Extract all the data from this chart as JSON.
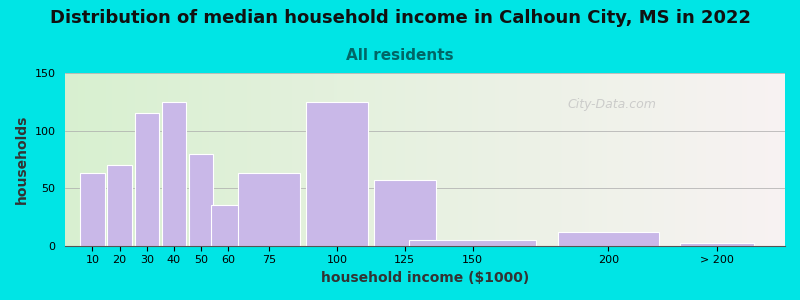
{
  "title": "Distribution of median household income in Calhoun City, MS in 2022",
  "subtitle": "All residents",
  "xlabel": "household income ($1000)",
  "ylabel": "households",
  "bar_labels": [
    "10",
    "20",
    "30",
    "40",
    "50",
    "60",
    "75",
    "100",
    "125",
    "150",
    "200",
    "> 200"
  ],
  "bar_heights": [
    63,
    70,
    115,
    125,
    80,
    35,
    63,
    125,
    57,
    5,
    12,
    2
  ],
  "bar_positions": [
    10,
    20,
    30,
    40,
    50,
    60,
    75,
    100,
    125,
    150,
    200,
    240
  ],
  "bar_widths": [
    9,
    9,
    9,
    9,
    9,
    13,
    23,
    23,
    23,
    47,
    37,
    27
  ],
  "bar_color": "#c9b8e8",
  "bar_edge_color": "#ffffff",
  "ylim": [
    0,
    150
  ],
  "yticks": [
    0,
    50,
    100,
    150
  ],
  "bg_outer": "#00e5e5",
  "title_fontsize": 13,
  "subtitle_fontsize": 11,
  "subtitle_color": "#006666",
  "axis_label_fontsize": 10,
  "watermark_text": "City-Data.com",
  "watermark_color": "#c0c0c0",
  "xlim": [
    0,
    265
  ]
}
